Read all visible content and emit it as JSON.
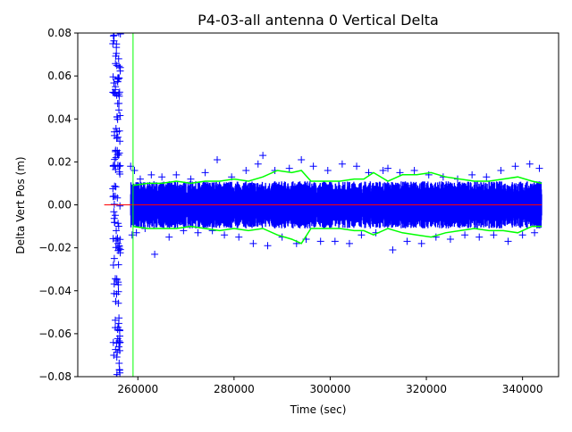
{
  "chart_data": {
    "type": "scatter",
    "title": "P4-03-all antenna 0 Vertical Delta",
    "xlabel": "Time (sec)",
    "ylabel": "Delta Vert Pos (m)",
    "xlim": [
      247500,
      347500
    ],
    "ylim": [
      -0.08,
      0.08
    ],
    "xticks": [
      260000,
      280000,
      300000,
      320000,
      340000
    ],
    "xtick_labels": [
      "260000",
      "280000",
      "300000",
      "320000",
      "340000"
    ],
    "yticks": [
      -0.08,
      -0.06,
      -0.04,
      -0.02,
      0.0,
      0.02,
      0.04,
      0.06,
      0.08
    ],
    "ytick_labels": [
      "−0.08",
      "−0.06",
      "−0.04",
      "−0.02",
      "0.00",
      "0.02",
      "0.04",
      "0.06",
      "0.08"
    ],
    "grid": false,
    "legend": "none",
    "colors": {
      "scatter": "#0000ff",
      "envelope": "#00ff00",
      "zero_line": "#ff0000",
      "vertical_marker": "#00ff00"
    },
    "zero_line": {
      "y": 0.0,
      "x_range": [
        253000,
        344000
      ]
    },
    "vertical_marker": {
      "x": 259000
    },
    "series": [
      {
        "marker": "+",
        "color": "#0000ff",
        "points": [
          [
            254800,
            0.075
          ],
          [
            255000,
            -0.07
          ],
          [
            255200,
            0.052
          ],
          [
            255400,
            -0.045
          ],
          [
            255600,
            0.031
          ],
          [
            255800,
            -0.058
          ],
          [
            256000,
            0.068
          ],
          [
            256200,
            -0.077
          ],
          [
            254900,
            0.018
          ],
          [
            255100,
            -0.025
          ],
          [
            255300,
            0.004
          ],
          [
            255500,
            -0.012
          ],
          [
            255700,
            0.041
          ],
          [
            255900,
            -0.036
          ],
          [
            256100,
            0.059
          ],
          [
            256300,
            -0.064
          ],
          [
            255050,
            0.079
          ],
          [
            255650,
            -0.079
          ],
          [
            255450,
            0.022
          ],
          [
            255850,
            -0.018
          ],
          [
            258500,
            0.018
          ],
          [
            258800,
            -0.014
          ],
          [
            259300,
            0.016
          ],
          [
            259700,
            -0.013
          ],
          [
            260500,
            0.012
          ],
          [
            261500,
            -0.011
          ],
          [
            262800,
            0.014
          ],
          [
            263500,
            -0.023
          ],
          [
            265000,
            0.013
          ],
          [
            266500,
            -0.015
          ],
          [
            268000,
            0.014
          ],
          [
            269500,
            -0.012
          ],
          [
            271000,
            0.012
          ],
          [
            272500,
            -0.013
          ],
          [
            274000,
            0.015
          ],
          [
            275500,
            -0.012
          ],
          [
            276500,
            0.021
          ],
          [
            278000,
            -0.014
          ],
          [
            279500,
            0.013
          ],
          [
            281000,
            -0.015
          ],
          [
            282500,
            0.016
          ],
          [
            284000,
            -0.018
          ],
          [
            285000,
            0.019
          ],
          [
            286000,
            0.023
          ],
          [
            287000,
            -0.019
          ],
          [
            288500,
            0.016
          ],
          [
            290000,
            -0.015
          ],
          [
            291500,
            0.017
          ],
          [
            293000,
            -0.018
          ],
          [
            294000,
            0.021
          ],
          [
            295000,
            -0.016
          ],
          [
            296500,
            0.018
          ],
          [
            298000,
            -0.017
          ],
          [
            299500,
            0.016
          ],
          [
            301000,
            -0.017
          ],
          [
            302500,
            0.019
          ],
          [
            304000,
            -0.018
          ],
          [
            305500,
            0.018
          ],
          [
            306500,
            -0.014
          ],
          [
            308000,
            0.015
          ],
          [
            309500,
            -0.013
          ],
          [
            311000,
            0.016
          ],
          [
            312000,
            0.017
          ],
          [
            313000,
            -0.021
          ],
          [
            314500,
            0.015
          ],
          [
            316000,
            -0.017
          ],
          [
            317500,
            0.016
          ],
          [
            319000,
            -0.018
          ],
          [
            320500,
            0.014
          ],
          [
            322000,
            -0.015
          ],
          [
            323500,
            0.013
          ],
          [
            325000,
            -0.016
          ],
          [
            326500,
            0.012
          ],
          [
            328000,
            -0.014
          ],
          [
            329500,
            0.014
          ],
          [
            331000,
            -0.015
          ],
          [
            332500,
            0.013
          ],
          [
            334000,
            -0.014
          ],
          [
            335500,
            0.016
          ],
          [
            337000,
            -0.017
          ],
          [
            338500,
            0.018
          ],
          [
            340000,
            -0.014
          ],
          [
            341500,
            0.019
          ],
          [
            342500,
            -0.013
          ],
          [
            343500,
            0.017
          ]
        ]
      },
      {
        "name": "",
        "marker": "line",
        "color": "#00ff00",
        "band": "upper",
        "x": [
          259000,
          262000,
          265000,
          268000,
          271000,
          274000,
          277000,
          280000,
          283000,
          286000,
          289000,
          292000,
          294000,
          296000,
          299000,
          302000,
          305000,
          307000,
          309000,
          312000,
          315000,
          318000,
          321000,
          324000,
          327000,
          330000,
          333000,
          336000,
          339000,
          342000,
          344000
        ],
        "y": [
          0.009,
          0.01,
          0.01,
          0.011,
          0.01,
          0.011,
          0.011,
          0.012,
          0.011,
          0.013,
          0.016,
          0.015,
          0.016,
          0.011,
          0.011,
          0.011,
          0.012,
          0.012,
          0.015,
          0.011,
          0.014,
          0.014,
          0.015,
          0.013,
          0.012,
          0.011,
          0.011,
          0.012,
          0.013,
          0.011,
          0.01
        ]
      },
      {
        "name": "",
        "marker": "line",
        "color": "#00ff00",
        "band": "lower",
        "x": [
          259000,
          262000,
          265000,
          268000,
          271000,
          274000,
          277000,
          280000,
          283000,
          286000,
          289000,
          292000,
          294000,
          296000,
          299000,
          302000,
          305000,
          307000,
          309000,
          312000,
          315000,
          318000,
          321000,
          324000,
          327000,
          330000,
          333000,
          336000,
          339000,
          342000,
          344000
        ],
        "y": [
          -0.01,
          -0.011,
          -0.011,
          -0.011,
          -0.01,
          -0.011,
          -0.012,
          -0.011,
          -0.012,
          -0.011,
          -0.014,
          -0.016,
          -0.018,
          -0.011,
          -0.011,
          -0.011,
          -0.012,
          -0.012,
          -0.014,
          -0.011,
          -0.013,
          -0.014,
          -0.015,
          -0.013,
          -0.012,
          -0.011,
          -0.012,
          -0.012,
          -0.013,
          -0.01,
          -0.01
        ]
      }
    ]
  }
}
